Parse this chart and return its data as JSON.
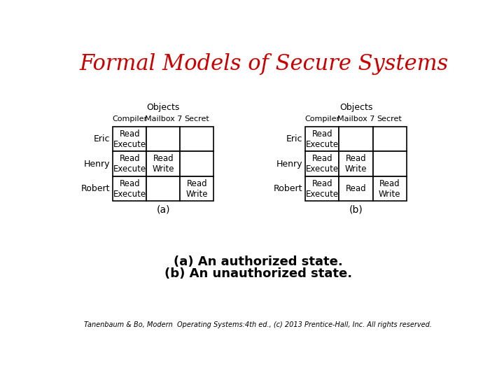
{
  "title": "Formal Models of Secure Systems",
  "title_color": "#cc0000",
  "title_fontsize": 22,
  "title_fontstyle": "italic",
  "title_fontweight": "normal",
  "bg_color": "#ffffff",
  "table_a": {
    "label": "(a)",
    "objects_label": "Objects",
    "col_headers": [
      "Compiler",
      "Mailbox 7",
      "Secret"
    ],
    "row_headers": [
      "Eric",
      "Henry",
      "Robert"
    ],
    "cells": [
      [
        "Read\nExecute",
        "",
        ""
      ],
      [
        "Read\nExecute",
        "Read\nWrite",
        ""
      ],
      [
        "Read\nExecute",
        "",
        "Read\nWrite"
      ]
    ]
  },
  "table_b": {
    "label": "(b)",
    "objects_label": "Objects",
    "col_headers": [
      "Compiler",
      "Mailbox 7",
      "Secret"
    ],
    "row_headers": [
      "Eric",
      "Henry",
      "Robert"
    ],
    "cells": [
      [
        "Read\nExecute",
        "",
        ""
      ],
      [
        "Read\nExecute",
        "Read\nWrite",
        ""
      ],
      [
        "Read\nExecute",
        "Read",
        "Read\nWrite"
      ]
    ]
  },
  "caption_line1": "(a) An authorized state.",
  "caption_line2": "(b) An unauthorized state.",
  "caption_fontsize": 13,
  "caption_fontweight": "bold",
  "footer": "Tanenbaum & Bo, Modern  Operating Systems:4th ed., (c) 2013 Prentice-Hall, Inc. All rights reserved.",
  "footer_fontsize": 7
}
